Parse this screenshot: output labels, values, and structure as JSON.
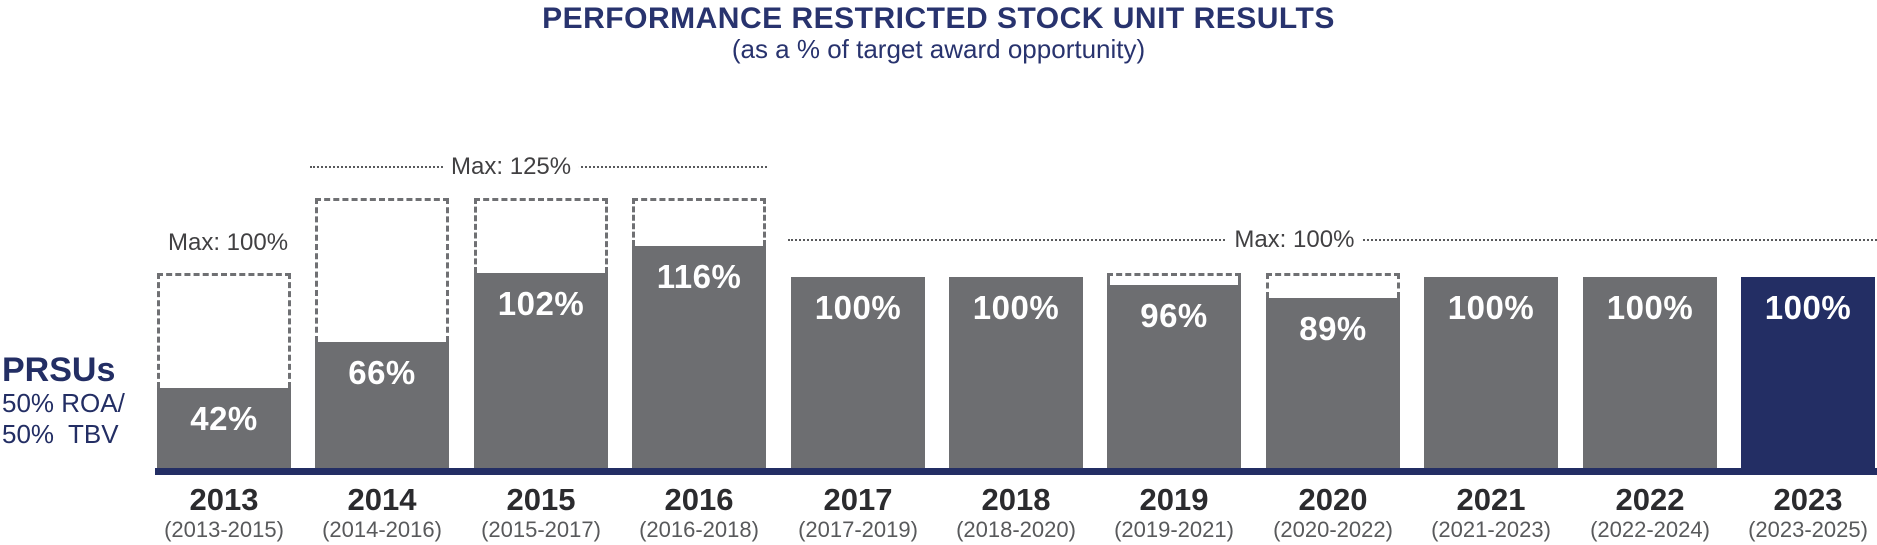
{
  "title": "PERFORMANCE RESTRICTED STOCK UNIT RESULTS",
  "subtitle": "(as a % of target award opportunity)",
  "side_label": {
    "heading": "PRSUs",
    "line1": "50% ROA/",
    "line2": "50%  TBV"
  },
  "annotations": {
    "max_2013": "Max: 100%",
    "max_125": "Max: 125%",
    "max_100": "Max: 100%"
  },
  "colors": {
    "navy": "#232e64",
    "title_navy": "#28336e",
    "bar_gray": "#6d6e71",
    "dash_gray": "#6f7073",
    "dot_gray": "#58595b",
    "annotation_text": "#414042",
    "year_text": "#2b2b2e",
    "period_text": "#58595b",
    "bar_value_text": "#ffffff"
  },
  "chart_data": {
    "type": "bar",
    "title": "PERFORMANCE RESTRICTED STOCK UNIT RESULTS",
    "subtitle": "(as a % of target award opportunity)",
    "ylabel": "% of target award opportunity",
    "ylim": [
      0,
      125
    ],
    "grid": false,
    "legend": false,
    "series_label": "PRSUs 50% ROA/ 50% TBV",
    "categories": [
      "2013",
      "2014",
      "2015",
      "2016",
      "2017",
      "2018",
      "2019",
      "2020",
      "2021",
      "2022",
      "2023"
    ],
    "bars": [
      {
        "year": "2013",
        "period": "(2013-2015)",
        "value": 42,
        "label": "42%",
        "max": 100,
        "show_max_box": true,
        "highlight": false
      },
      {
        "year": "2014",
        "period": "(2014-2016)",
        "value": 66,
        "label": "66%",
        "max": 125,
        "show_max_box": true,
        "highlight": false
      },
      {
        "year": "2015",
        "period": "(2015-2017)",
        "value": 102,
        "label": "102%",
        "max": 125,
        "show_max_box": true,
        "highlight": false
      },
      {
        "year": "2016",
        "period": "(2016-2018)",
        "value": 116,
        "label": "116%",
        "max": 125,
        "show_max_box": true,
        "highlight": false
      },
      {
        "year": "2017",
        "period": "(2017-2019)",
        "value": 100,
        "label": "100%",
        "max": 100,
        "show_max_box": false,
        "highlight": false
      },
      {
        "year": "2018",
        "period": "(2018-2020)",
        "value": 100,
        "label": "100%",
        "max": 100,
        "show_max_box": false,
        "highlight": false
      },
      {
        "year": "2019",
        "period": "(2019-2021)",
        "value": 96,
        "label": "96%",
        "max": 100,
        "show_max_box": true,
        "highlight": false
      },
      {
        "year": "2020",
        "period": "(2020-2022)",
        "value": 89,
        "label": "89%",
        "max": 100,
        "show_max_box": true,
        "highlight": false
      },
      {
        "year": "2021",
        "period": "(2021-2023)",
        "value": 100,
        "label": "100%",
        "max": 100,
        "show_max_box": false,
        "highlight": false
      },
      {
        "year": "2022",
        "period": "(2022-2024)",
        "value": 100,
        "label": "100%",
        "max": 100,
        "show_max_box": false,
        "highlight": false
      },
      {
        "year": "2023",
        "period": "(2023-2025)",
        "value": 100,
        "label": "100%",
        "max": 100,
        "show_max_box": false,
        "highlight": true
      }
    ]
  }
}
